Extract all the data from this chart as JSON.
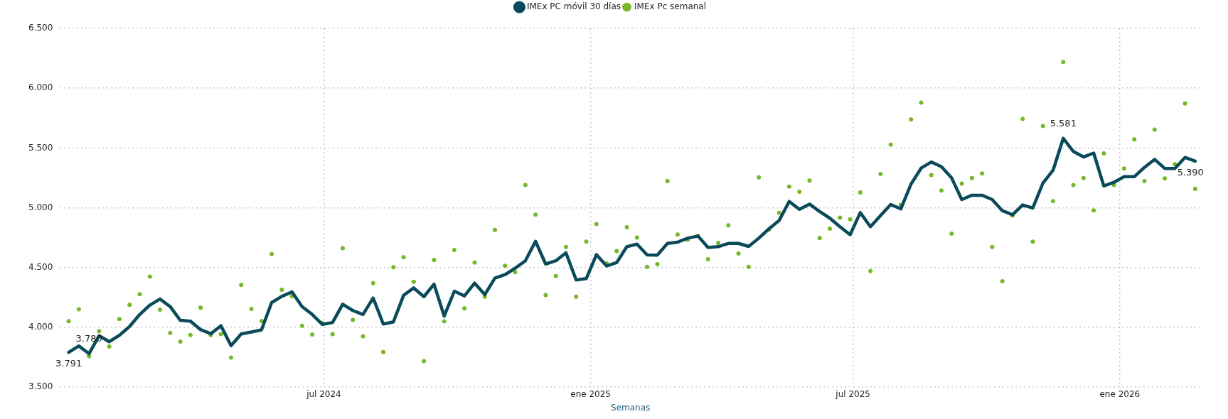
{
  "chart_data": {
    "type": "line",
    "xlabel": "Semanas",
    "x": [
      "2024-01-07",
      "2024-01-14",
      "2024-01-21",
      "2024-01-28",
      "2024-02-04",
      "2024-02-11",
      "2024-02-18",
      "2024-02-25",
      "2024-03-03",
      "2024-03-10",
      "2024-03-17",
      "2024-03-24",
      "2024-03-31",
      "2024-04-07",
      "2024-04-14",
      "2024-04-21",
      "2024-04-28",
      "2024-05-05",
      "2024-05-12",
      "2024-05-19",
      "2024-05-26",
      "2024-06-02",
      "2024-06-09",
      "2024-06-16",
      "2024-06-23",
      "2024-06-30",
      "2024-07-07",
      "2024-07-14",
      "2024-07-21",
      "2024-07-28",
      "2024-08-04",
      "2024-08-11",
      "2024-08-18",
      "2024-08-25",
      "2024-09-01",
      "2024-09-08",
      "2024-09-15",
      "2024-09-22",
      "2024-09-29",
      "2024-10-06",
      "2024-10-13",
      "2024-10-20",
      "2024-10-27",
      "2024-11-03",
      "2024-11-10",
      "2024-11-17",
      "2024-11-24",
      "2024-12-01",
      "2024-12-08",
      "2024-12-15",
      "2024-12-22",
      "2024-12-29",
      "2025-01-05",
      "2025-01-12",
      "2025-01-19",
      "2025-01-26",
      "2025-02-02",
      "2025-02-09",
      "2025-02-16",
      "2025-02-23",
      "2025-03-02",
      "2025-03-09",
      "2025-03-16",
      "2025-03-23",
      "2025-03-30",
      "2025-04-06",
      "2025-04-13",
      "2025-04-20",
      "2025-04-27",
      "2025-05-04",
      "2025-05-11",
      "2025-05-18",
      "2025-05-25",
      "2025-06-01",
      "2025-06-08",
      "2025-06-15",
      "2025-06-22",
      "2025-06-29",
      "2025-07-06",
      "2025-07-13",
      "2025-07-20",
      "2025-07-27",
      "2025-08-03",
      "2025-08-10",
      "2025-08-17",
      "2025-08-24",
      "2025-08-31",
      "2025-09-07",
      "2025-09-14",
      "2025-09-21",
      "2025-09-28",
      "2025-10-05",
      "2025-10-12",
      "2025-10-19",
      "2025-10-26",
      "2025-11-02",
      "2025-11-09",
      "2025-11-16",
      "2025-11-23",
      "2025-11-30",
      "2025-12-07",
      "2025-12-14",
      "2025-12-21",
      "2025-12-28",
      "2026-01-04",
      "2026-01-11",
      "2026-01-18",
      "2026-01-25",
      "2026-02-01",
      "2026-02-08",
      "2026-02-15",
      "2026-02-22"
    ],
    "series": [
      {
        "name": "IMEx PC móvil 30 días",
        "marker": "none",
        "color": "#0b4a5a",
        "values": [
          3791,
          3845,
          3780,
          3930,
          3880,
          3934,
          4007,
          4108,
          4186,
          4237,
          4174,
          4059,
          4052,
          3981,
          3947,
          4014,
          3847,
          3945,
          3961,
          3979,
          4208,
          4259,
          4297,
          4174,
          4108,
          4025,
          4041,
          4194,
          4141,
          4108,
          4246,
          4028,
          4046,
          4268,
          4330,
          4257,
          4361,
          4094,
          4303,
          4263,
          4370,
          4274,
          4412,
          4441,
          4495,
          4557,
          4720,
          4530,
          4557,
          4624,
          4397,
          4408,
          4608,
          4513,
          4542,
          4675,
          4696,
          4606,
          4604,
          4702,
          4713,
          4746,
          4764,
          4668,
          4675,
          4702,
          4702,
          4677,
          4746,
          4824,
          4893,
          5053,
          4987,
          5031,
          4969,
          4913,
          4842,
          4775,
          4960,
          4842,
          4935,
          5027,
          4991,
          5198,
          5332,
          5383,
          5343,
          5250,
          5069,
          5105,
          5105,
          5069,
          4976,
          4942,
          5024,
          4998,
          5207,
          5314,
          5581,
          5471,
          5425,
          5458,
          5182,
          5213,
          5260,
          5260,
          5338,
          5405,
          5329,
          5329,
          5421,
          5390
        ],
        "value_labels": [
          "3.791",
          null,
          "3.780",
          null,
          null,
          null,
          null,
          null,
          null,
          null,
          null,
          null,
          null,
          null,
          null,
          null,
          null,
          null,
          null,
          null,
          null,
          null,
          null,
          null,
          null,
          null,
          null,
          null,
          null,
          null,
          null,
          null,
          null,
          null,
          null,
          null,
          null,
          null,
          null,
          null,
          null,
          null,
          null,
          null,
          null,
          null,
          null,
          null,
          null,
          null,
          null,
          null,
          null,
          null,
          null,
          null,
          null,
          null,
          null,
          null,
          null,
          null,
          null,
          null,
          null,
          null,
          null,
          null,
          null,
          null,
          null,
          null,
          null,
          null,
          null,
          null,
          null,
          null,
          null,
          null,
          null,
          null,
          null,
          null,
          null,
          null,
          null,
          null,
          null,
          null,
          null,
          null,
          null,
          null,
          null,
          null,
          null,
          null,
          "5.581",
          null,
          null,
          null,
          null,
          null,
          null,
          null,
          null,
          null,
          null,
          null,
          null,
          "5.390"
        ]
      },
      {
        "name": "IMEx Pc semanal",
        "type": "scatter",
        "marker": "circle",
        "color": "#76b82a",
        "values": [
          4052,
          4152,
          3760,
          3969,
          3840,
          4070,
          4188,
          4277,
          4424,
          4148,
          3954,
          3881,
          3936,
          4165,
          3936,
          3943,
          3747,
          4355,
          4154,
          4054,
          4613,
          4315,
          4261,
          4014,
          3941,
          4037,
          3943,
          4662,
          4063,
          3925,
          4370,
          3794,
          4504,
          4586,
          4381,
          3718,
          4564,
          4050,
          4648,
          4159,
          4542,
          4257,
          4815,
          4515,
          4462,
          5191,
          4942,
          4270,
          4429,
          4673,
          4257,
          4717,
          4864,
          4535,
          4639,
          4837,
          4751,
          4506,
          4528,
          5223,
          4777,
          4733,
          4764,
          4570,
          4706,
          4853,
          4617,
          4506,
          5254,
          4818,
          4958,
          5178,
          5134,
          5227,
          4746,
          4826,
          4918,
          4904,
          5129,
          4470,
          5283,
          5527,
          5024,
          5739,
          5879,
          5274,
          5145,
          4784,
          5203,
          5249,
          5287,
          4673,
          4386,
          4935,
          5743,
          4717,
          5683,
          5056,
          6220,
          5191,
          5249,
          4978,
          5455,
          5191,
          5329,
          5572,
          5223,
          5654,
          5245,
          5365,
          5872,
          5158
        ]
      }
    ],
    "xlim": [
      "2024-01-01",
      "2026-02-26"
    ],
    "xticks": [
      {
        "value": "2024-07-01",
        "label": "jul 2024"
      },
      {
        "value": "2025-01-01",
        "label": "ene 2025"
      },
      {
        "value": "2025-07-01",
        "label": "jul 2025"
      },
      {
        "value": "2026-01-01",
        "label": "ene 2026"
      }
    ],
    "ylim": [
      3500,
      6500
    ],
    "yticks": [
      {
        "value": 3500,
        "label": "3.500"
      },
      {
        "value": 4000,
        "label": "4.000"
      },
      {
        "value": 4500,
        "label": "4.500"
      },
      {
        "value": 5000,
        "label": "5.000"
      },
      {
        "value": 5500,
        "label": "5.500"
      },
      {
        "value": 6000,
        "label": "6.000"
      },
      {
        "value": 6500,
        "label": "6.500"
      }
    ],
    "grid": true,
    "legend": "top"
  }
}
